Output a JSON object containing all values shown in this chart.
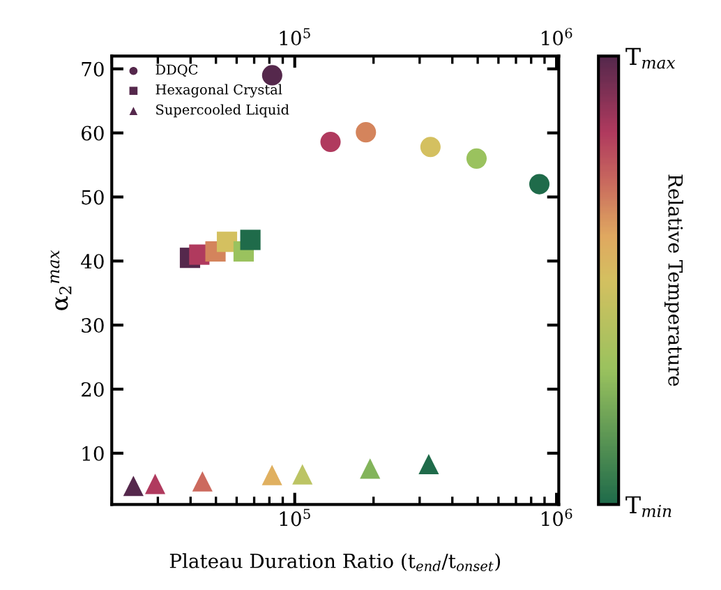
{
  "chart_data": {
    "type": "scatter",
    "xlabel": "Plateau Duration Ratio (t$_{end}$/t$_{onset}$)",
    "ylabel": "α$_{2}$$^{max}$",
    "clabel": "Relative Temperature",
    "log": "x",
    "xlim": [
      20000,
      1020000
    ],
    "xticks": [
      {
        "value": 100000,
        "label": "10$^{5}$"
      },
      {
        "value": 1000000,
        "label": "10$^{6}$"
      }
    ],
    "ylim": [
      2,
      72
    ],
    "yticks": [
      10,
      20,
      30,
      40,
      50,
      60,
      70
    ],
    "clim": [
      0,
      1
    ],
    "cticks": [
      {
        "value": 0,
        "label": "T$_{min}$"
      },
      {
        "value": 1,
        "label": "T$_{max}$"
      }
    ],
    "legend": "top left",
    "grid": false,
    "series": [
      {
        "name": "DDQC",
        "marker": "circle",
        "x": [
          82000,
          137000,
          187000,
          330000,
          495000,
          860000
        ],
        "values": [
          69.0,
          58.6,
          60.1,
          57.8,
          56.0,
          52.0
        ],
        "colors": [
          "#55284c",
          "#b03a5e",
          "#d4845c",
          "#d4c060",
          "#9ac25e",
          "#1f6b4a"
        ]
      },
      {
        "name": "Hexagonal Crystal",
        "marker": "square",
        "x": [
          39800,
          43200,
          49800,
          55100,
          63800,
          67700
        ],
        "values": [
          40.5,
          41.0,
          41.5,
          43.0,
          41.5,
          43.3
        ],
        "colors": [
          "#55284c",
          "#b03a5e",
          "#d4845c",
          "#d4c060",
          "#9ac25e",
          "#1f6b4a"
        ]
      },
      {
        "name": "Supercooled Liquid",
        "marker": "triangle",
        "x": [
          24200,
          29300,
          44400,
          81900,
          107000,
          194000,
          325000
        ],
        "values": [
          4.9,
          5.2,
          5.6,
          6.6,
          6.7,
          7.6,
          8.3
        ],
        "colors": [
          "#55284c",
          "#b03a5e",
          "#cc6a5e",
          "#e0b060",
          "#bcc464",
          "#82b45a",
          "#1f6b4a"
        ]
      }
    ]
  }
}
